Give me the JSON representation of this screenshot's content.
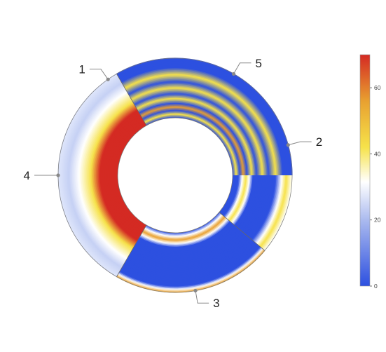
{
  "chart_data": {
    "type": "sector-chart",
    "segments": [
      {
        "label": "1",
        "start_deg": 180,
        "end_deg": 290
      },
      {
        "label": "2",
        "start_deg": 290,
        "end_deg": 400
      },
      {
        "label": "3",
        "start_deg": 400,
        "end_deg": 480
      },
      {
        "label": "4",
        "start_deg": 480,
        "end_deg": 600
      },
      {
        "label": "5",
        "start_deg": 600,
        "end_deg": 720
      }
    ],
    "colorbar": {
      "min": 0,
      "max": 70,
      "ticks": [
        "0",
        "20",
        "40",
        "60"
      ],
      "tick_values": [
        0,
        20,
        40,
        60
      ],
      "colors": [
        "#2d50e0",
        "#ffffff",
        "#f6e24a",
        "#e8a030",
        "#d42a23"
      ]
    },
    "legend": "right",
    "grid": false
  }
}
